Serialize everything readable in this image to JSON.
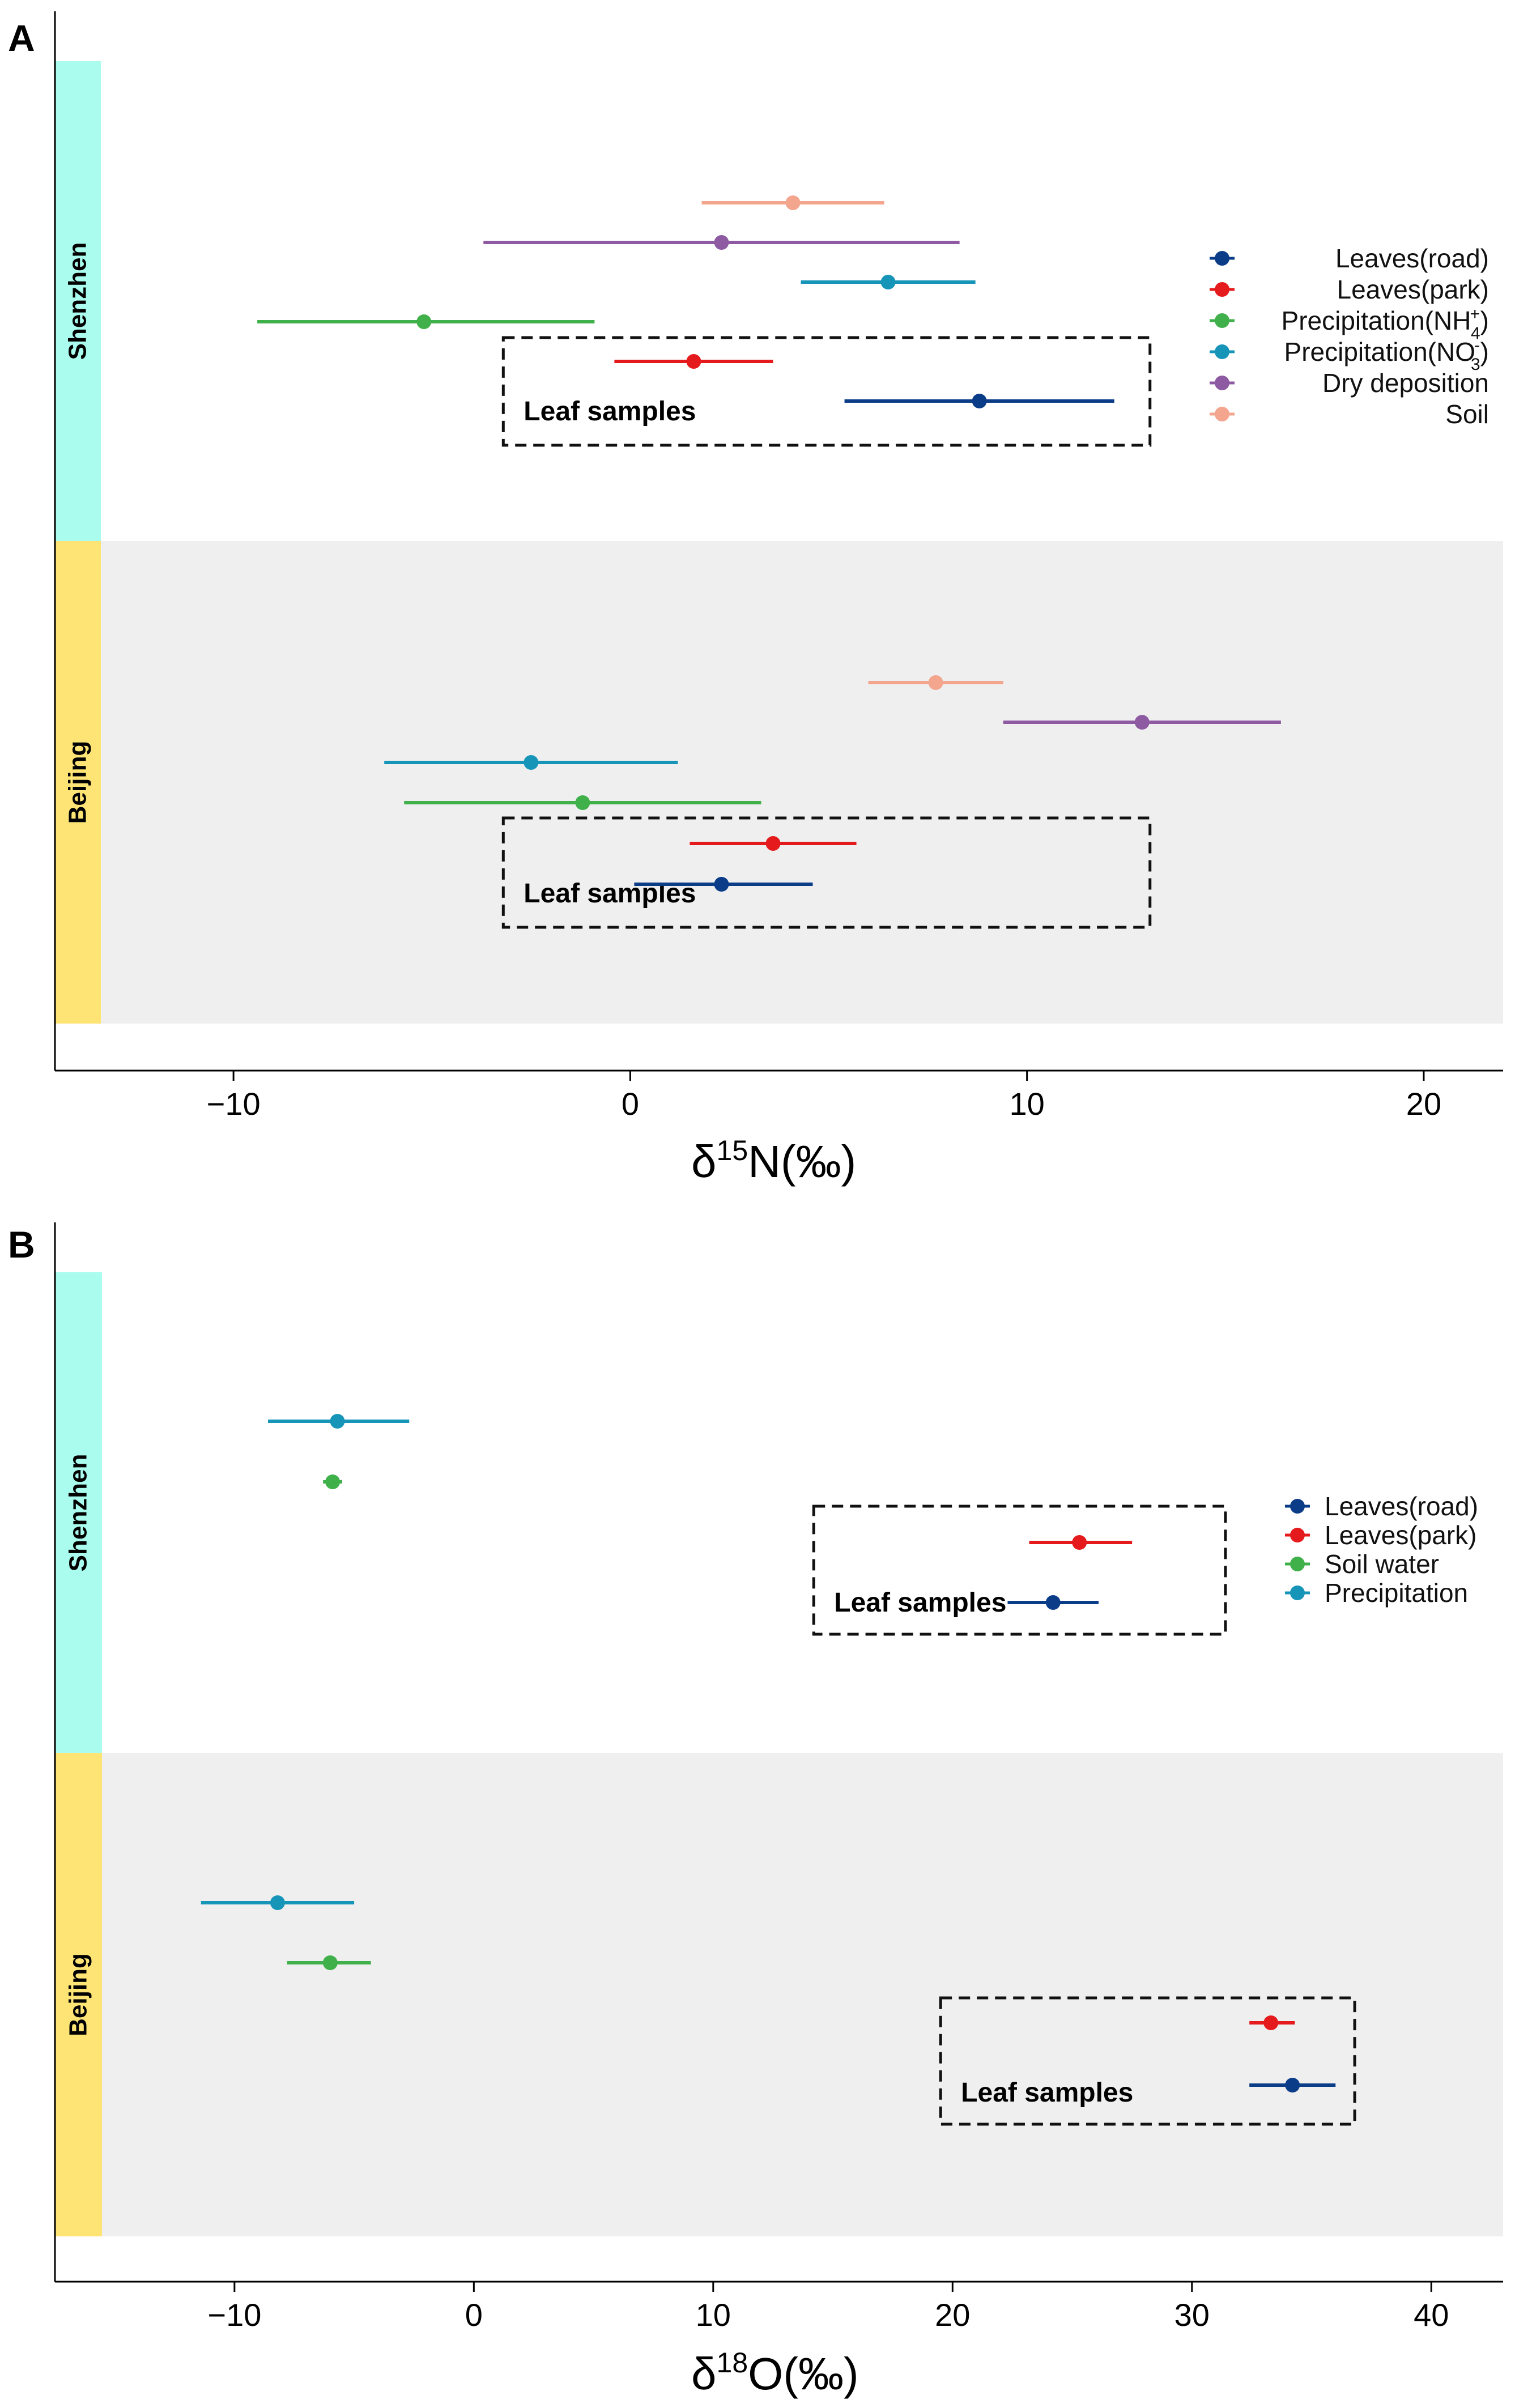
{
  "chart_data": [
    {
      "panel": "A",
      "type": "scatter",
      "title": "",
      "xlabel_symbol": "δ",
      "xlabel_sup": "15",
      "xlabel_rest": "N(‰)",
      "xlim": [
        -14.5,
        22
      ],
      "xticks": [
        -10,
        0,
        10,
        20
      ],
      "xtick_labels": [
        "−10",
        "0",
        "10",
        "20"
      ],
      "grid": false,
      "legend_position": "right",
      "facets": [
        {
          "name": "Shenzhen",
          "color": "#aafcee",
          "background": "#ffffff",
          "box_label": "Leaf samples",
          "series": [
            {
              "name": "Soil",
              "mean": 4.1,
              "low": 1.8,
              "high": 6.4,
              "color": "#f4a58e"
            },
            {
              "name": "Dry deposition",
              "mean": 2.3,
              "low": -3.7,
              "high": 8.3,
              "color": "#8e5aa1"
            },
            {
              "name": "Precipitation(NO3-)",
              "mean": 6.5,
              "low": 4.3,
              "high": 8.7,
              "color": "#1795b8"
            },
            {
              "name": "Precipitation(NH4+)",
              "mean": -5.2,
              "low": -9.4,
              "high": -0.9,
              "color": "#3fb04a"
            },
            {
              "name": "Leaves(park)",
              "mean": 1.6,
              "low": -0.4,
              "high": 3.6,
              "color": "#e41a1c"
            },
            {
              "name": "Leaves(road)",
              "mean": 8.8,
              "low": 5.4,
              "high": 12.2,
              "color": "#0b3c88"
            }
          ],
          "leaf_box": {
            "x0": -3.2,
            "x1": 13.1
          }
        },
        {
          "name": "Beijing",
          "color": "#fde475",
          "background": "#efefef",
          "box_label": "Leaf samples",
          "series": [
            {
              "name": "Soil",
              "mean": 7.7,
              "low": 6.0,
              "high": 9.4,
              "color": "#f4a58e"
            },
            {
              "name": "Dry deposition",
              "mean": 12.9,
              "low": 9.4,
              "high": 16.4,
              "color": "#8e5aa1"
            },
            {
              "name": "Precipitation(NO3-)",
              "mean": -2.5,
              "low": -6.2,
              "high": 1.2,
              "color": "#1795b8"
            },
            {
              "name": "Precipitation(NH4+)",
              "mean": -1.2,
              "low": -5.7,
              "high": 3.3,
              "color": "#3fb04a"
            },
            {
              "name": "Leaves(park)",
              "mean": 3.6,
              "low": 1.5,
              "high": 5.7,
              "color": "#e41a1c"
            },
            {
              "name": "Leaves(road)",
              "mean": 2.3,
              "low": 0.1,
              "high": 4.6,
              "color": "#0b3c88"
            }
          ],
          "leaf_box": {
            "x0": -3.2,
            "x1": 13.1
          }
        }
      ],
      "legend": [
        {
          "text": "Leaves(road)",
          "color": "#0b3c88"
        },
        {
          "text": "Leaves(park)",
          "color": "#e41a1c"
        },
        {
          "text": "Precipitation(NH",
          "sub": "4",
          "sup": "+",
          "close": ")",
          "color": "#3fb04a"
        },
        {
          "text": "Precipitation(NO",
          "sub": "3",
          "sup": "-",
          "close": ")",
          "color": "#1795b8"
        },
        {
          "text": "Dry deposition",
          "color": "#8e5aa1"
        },
        {
          "text": "Soil",
          "color": "#f4a58e"
        }
      ]
    },
    {
      "panel": "B",
      "type": "scatter",
      "title": "",
      "xlabel_symbol": "δ",
      "xlabel_sup": "18",
      "xlabel_rest": "O(‰)",
      "xlim": [
        -17.5,
        43
      ],
      "xticks": [
        -10,
        0,
        10,
        20,
        30,
        40
      ],
      "xtick_labels": [
        "−10",
        "0",
        "10",
        "20",
        "30",
        "40"
      ],
      "grid": false,
      "legend_position": "right",
      "facets": [
        {
          "name": "Shenzhen",
          "color": "#aafcee",
          "background": "#ffffff",
          "box_label": "Leaf samples",
          "series": [
            {
              "name": "Precipitation",
              "mean": -5.7,
              "low": -8.6,
              "high": -2.7,
              "color": "#1795b8"
            },
            {
              "name": "Soil water",
              "mean": -5.9,
              "low": -6.3,
              "high": -5.5,
              "color": "#3fb04a"
            },
            {
              "name": "Leaves(park)",
              "mean": 25.3,
              "low": 23.2,
              "high": 27.5,
              "color": "#e41a1c"
            },
            {
              "name": "Leaves(road)",
              "mean": 24.2,
              "low": 22.3,
              "high": 26.1,
              "color": "#0b3c88"
            }
          ],
          "leaf_box": {
            "x0": 14.2,
            "x1": 31.4
          }
        },
        {
          "name": "Beijing",
          "color": "#fde475",
          "background": "#efefef",
          "box_label": "Leaf samples",
          "series": [
            {
              "name": "Precipitation",
              "mean": -8.2,
              "low": -11.4,
              "high": -5.0,
              "color": "#1795b8"
            },
            {
              "name": "Soil water",
              "mean": -6.0,
              "low": -7.8,
              "high": -4.3,
              "color": "#3fb04a"
            },
            {
              "name": "Leaves(park)",
              "mean": 33.3,
              "low": 32.4,
              "high": 34.3,
              "color": "#e41a1c"
            },
            {
              "name": "Leaves(road)",
              "mean": 34.2,
              "low": 32.4,
              "high": 36.0,
              "color": "#0b3c88"
            }
          ],
          "leaf_box": {
            "x0": 19.5,
            "x1": 36.8
          }
        }
      ],
      "legend": [
        {
          "text": "Leaves(road)",
          "color": "#0b3c88"
        },
        {
          "text": "Leaves(park)",
          "color": "#e41a1c"
        },
        {
          "text": "Soil water",
          "color": "#3fb04a"
        },
        {
          "text": "Precipitation",
          "color": "#1795b8"
        }
      ]
    }
  ]
}
